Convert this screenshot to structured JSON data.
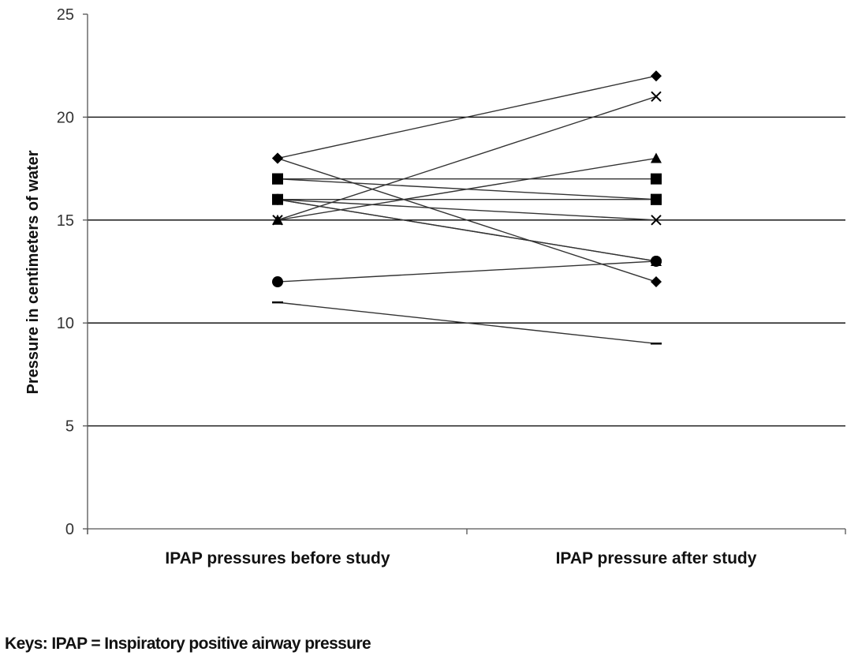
{
  "chart_data": {
    "type": "line",
    "title": "",
    "xlabel": "",
    "ylabel": "Pressure in centimeters of water",
    "categories": [
      "IPAP pressures before study",
      "IPAP pressure after study"
    ],
    "ylim": [
      0,
      25
    ],
    "yticks": [
      0,
      5,
      10,
      15,
      20,
      25
    ],
    "grid": true,
    "series": [
      {
        "marker": "diamond",
        "values": [
          18,
          22
        ]
      },
      {
        "marker": "diamond",
        "values": [
          18,
          12
        ]
      },
      {
        "marker": "x",
        "values": [
          15,
          21
        ]
      },
      {
        "marker": "triangle",
        "values": [
          15,
          18
        ]
      },
      {
        "marker": "square",
        "values": [
          17,
          17
        ]
      },
      {
        "marker": "square",
        "values": [
          16,
          16
        ]
      },
      {
        "marker": "square",
        "values": [
          17,
          16
        ]
      },
      {
        "marker": "x",
        "values": [
          16,
          15
        ]
      },
      {
        "marker": "triangle",
        "values": [
          16,
          13
        ]
      },
      {
        "marker": "circle",
        "values": [
          16,
          13
        ]
      },
      {
        "marker": "circle",
        "values": [
          12,
          13
        ]
      },
      {
        "marker": "dash",
        "values": [
          11,
          9
        ]
      }
    ]
  },
  "footnote": "Keys: IPAP = Inspiratory positive airway pressure",
  "colors": {
    "line": "#333333",
    "marker": "#000000",
    "grid": "#000000"
  }
}
